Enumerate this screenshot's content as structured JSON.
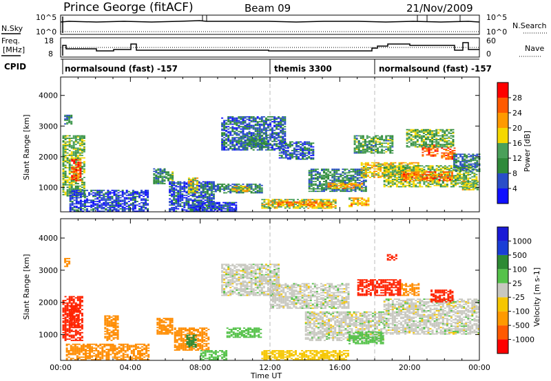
{
  "header": {
    "station": "Prince George (fitACF)",
    "beam": "Beam 09",
    "date": "21/Nov/2009"
  },
  "labels": {
    "nsky": "N.Sky",
    "nsearch": "N.Search",
    "freq_line1": "Freq.",
    "freq_line2": "[MHz]",
    "nave": "Nave",
    "cpid": "CPID",
    "tick_1e5_left": "10^5",
    "tick_1e0_left": "10^0",
    "tick_1e5_right": "10^5",
    "tick_1e0_right": "10^0",
    "freq_18": "18",
    "freq_8": "8",
    "nave_60": "60",
    "nave_0": "0",
    "xlabel": "Time UT",
    "ylabel_top": "Slant Range [km]",
    "ylabel_bottom": "Slant Range [km]",
    "power_label": "Power [dB]",
    "velocity_label": "Velocity [m s-1]"
  },
  "cpid_segments": [
    {
      "start": 0,
      "end": 12,
      "label": "normalsound (fast) -157"
    },
    {
      "start": 12,
      "end": 18,
      "label": "themis 3300"
    },
    {
      "start": 18,
      "end": 24,
      "label": "normalsound (fast) -157"
    }
  ],
  "chart_data": [
    {
      "type": "heatmap",
      "title": "Power",
      "xlabel": "Time UT",
      "ylabel": "Slant Range [km]",
      "x_ticks": [
        "00:00",
        "04:00",
        "08:00",
        "12:00",
        "16:00",
        "20:00",
        "00:00"
      ],
      "xlim": [
        0,
        24
      ],
      "y_ticks": [
        "1000",
        "2000",
        "3000",
        "4000"
      ],
      "ylim": [
        200,
        4600
      ],
      "colorbar": {
        "label": "Power [dB]",
        "ticks": [
          "4",
          "8",
          "12",
          "16",
          "20",
          "24",
          "28"
        ],
        "range": [
          0,
          30
        ]
      },
      "regions": [
        {
          "t0": 0.1,
          "t1": 1.4,
          "r0": 700,
          "r1": 2700,
          "value": 14
        },
        {
          "t0": 0.6,
          "t1": 1.2,
          "r0": 1200,
          "r1": 1900,
          "value": 26
        },
        {
          "t0": 0.2,
          "t1": 0.6,
          "r0": 3050,
          "r1": 3350,
          "value": 10
        },
        {
          "t0": 0.5,
          "t1": 5.0,
          "r0": 200,
          "r1": 900,
          "value": 5
        },
        {
          "t0": 5.3,
          "t1": 6.0,
          "r0": 1100,
          "r1": 1600,
          "value": 9
        },
        {
          "t0": 6.0,
          "t1": 6.4,
          "r0": 1200,
          "r1": 1500,
          "value": 13
        },
        {
          "t0": 6.2,
          "t1": 8.8,
          "r0": 200,
          "r1": 1200,
          "value": 6
        },
        {
          "t0": 7.3,
          "t1": 7.9,
          "r0": 800,
          "r1": 1300,
          "value": 17
        },
        {
          "t0": 8.0,
          "t1": 11.5,
          "r0": 800,
          "r1": 1100,
          "value": 9
        },
        {
          "t0": 9.8,
          "t1": 10.8,
          "r0": 850,
          "r1": 1050,
          "value": 19
        },
        {
          "t0": 7.6,
          "t1": 10.0,
          "r0": 200,
          "r1": 500,
          "value": 5
        },
        {
          "t0": 9.2,
          "t1": 12.8,
          "r0": 2200,
          "r1": 3300,
          "value": 7
        },
        {
          "t0": 10.3,
          "t1": 11.8,
          "r0": 2300,
          "r1": 2700,
          "value": 10
        },
        {
          "t0": 11.5,
          "t1": 15.8,
          "r0": 300,
          "r1": 600,
          "value": 17
        },
        {
          "t0": 12.3,
          "t1": 15.5,
          "r0": 380,
          "r1": 520,
          "value": 23
        },
        {
          "t0": 12.5,
          "t1": 14.5,
          "r0": 1900,
          "r1": 2500,
          "value": 7
        },
        {
          "t0": 14.2,
          "t1": 17.5,
          "r0": 850,
          "r1": 1600,
          "value": 10
        },
        {
          "t0": 15.3,
          "t1": 17.3,
          "r0": 950,
          "r1": 1150,
          "value": 21
        },
        {
          "t0": 16.5,
          "t1": 17.6,
          "r0": 350,
          "r1": 650,
          "value": 20
        },
        {
          "t0": 16.8,
          "t1": 19.0,
          "r0": 2100,
          "r1": 2700,
          "value": 12
        },
        {
          "t0": 17.2,
          "t1": 20.5,
          "r0": 1300,
          "r1": 1800,
          "value": 19
        },
        {
          "t0": 18.5,
          "t1": 23.8,
          "r0": 1000,
          "r1": 1700,
          "value": 15
        },
        {
          "t0": 19.5,
          "t1": 22.5,
          "r0": 1200,
          "r1": 1500,
          "value": 24
        },
        {
          "t0": 20.7,
          "t1": 21.6,
          "r0": 2000,
          "r1": 2400,
          "value": 27
        },
        {
          "t0": 21.8,
          "t1": 22.6,
          "r0": 1900,
          "r1": 2300,
          "value": 25
        },
        {
          "t0": 19.8,
          "t1": 22.5,
          "r0": 2300,
          "r1": 2900,
          "value": 13
        },
        {
          "t0": 22.5,
          "t1": 24.0,
          "r0": 1500,
          "r1": 2100,
          "value": 9
        },
        {
          "t0": 23.0,
          "t1": 23.9,
          "r0": 900,
          "r1": 1200,
          "value": 17
        }
      ]
    },
    {
      "type": "heatmap",
      "title": "Velocity",
      "xlabel": "Time UT",
      "ylabel": "Slant Range [km]",
      "x_ticks": [
        "00:00",
        "04:00",
        "08:00",
        "12:00",
        "16:00",
        "20:00",
        "00:00"
      ],
      "xlim": [
        0,
        24
      ],
      "y_ticks": [
        "1000",
        "2000",
        "3000",
        "4000"
      ],
      "ylim": [
        200,
        4600
      ],
      "colorbar": {
        "label": "Velocity [m s-1]",
        "ticks": [
          "1000",
          "500",
          "100",
          "25",
          "-25",
          "-100",
          "-500",
          "-1000"
        ]
      },
      "regions": [
        {
          "t0": 0.1,
          "t1": 1.3,
          "r0": 800,
          "r1": 2200,
          "value": -600
        },
        {
          "t0": 0.5,
          "t1": 1.1,
          "r0": 1200,
          "r1": 1900,
          "value": -1000
        },
        {
          "t0": 0.2,
          "t1": 0.5,
          "r0": 3100,
          "r1": 3350,
          "value": -200
        },
        {
          "t0": 0.3,
          "t1": 5.0,
          "r0": 200,
          "r1": 700,
          "value": -150
        },
        {
          "t0": 2.5,
          "t1": 3.3,
          "r0": 800,
          "r1": 1600,
          "value": -300
        },
        {
          "t0": 5.5,
          "t1": 6.4,
          "r0": 1000,
          "r1": 1500,
          "value": -300
        },
        {
          "t0": 6.5,
          "t1": 8.5,
          "r0": 500,
          "r1": 1200,
          "value": -250
        },
        {
          "t0": 7.2,
          "t1": 7.8,
          "r0": 600,
          "r1": 1000,
          "value": 300
        },
        {
          "t0": 8.0,
          "t1": 9.5,
          "r0": 200,
          "r1": 500,
          "value": 60
        },
        {
          "t0": 9.5,
          "t1": 11.5,
          "r0": 900,
          "r1": 1200,
          "value": 60
        },
        {
          "t0": 9.2,
          "t1": 12.5,
          "r0": 2200,
          "r1": 3200,
          "value": 0
        },
        {
          "t0": 11.5,
          "t1": 16.5,
          "r0": 200,
          "r1": 500,
          "value": -60
        },
        {
          "t0": 12.0,
          "t1": 16.5,
          "r0": 1800,
          "r1": 2600,
          "value": 0
        },
        {
          "t0": 14.0,
          "t1": 18.5,
          "r0": 800,
          "r1": 1700,
          "value": 0
        },
        {
          "t0": 16.5,
          "t1": 18.5,
          "r0": 700,
          "r1": 1100,
          "value": 60
        },
        {
          "t0": 17.0,
          "t1": 19.5,
          "r0": 2200,
          "r1": 2700,
          "value": -600
        },
        {
          "t0": 18.5,
          "t1": 24.0,
          "r0": 1000,
          "r1": 2100,
          "value": 0
        },
        {
          "t0": 19.5,
          "t1": 20.5,
          "r0": 2200,
          "r1": 2600,
          "value": -300
        },
        {
          "t0": 21.2,
          "t1": 22.5,
          "r0": 2000,
          "r1": 2400,
          "value": -600
        },
        {
          "t0": 18.7,
          "t1": 19.2,
          "r0": 3300,
          "r1": 3500,
          "value": -1000
        }
      ]
    }
  ]
}
